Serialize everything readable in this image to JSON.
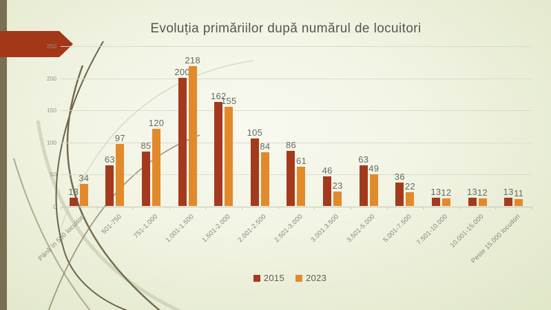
{
  "slide": {
    "title": "Evoluția primăriilor după numărul de locuitori"
  },
  "chart_data": {
    "type": "bar",
    "title": "Evoluția primăriilor după numărul de locuitori",
    "categories": [
      "Până în 500 locuitori",
      "501-750",
      "751-1.000",
      "1.001-1.500",
      "1.501-2.000",
      "2.001-2.500",
      "2.501-3.000",
      "3.001.3.500",
      "3.501-5.000",
      "5.001-7.500",
      "7.501-10.000",
      "10.001-15.000",
      "Peste 15.000 locuitori"
    ],
    "series": [
      {
        "name": "2015",
        "color": "#a43a1d",
        "values": [
          13,
          63,
          85,
          200,
          162,
          105,
          86,
          46,
          63,
          36,
          13,
          13,
          13
        ]
      },
      {
        "name": "2023",
        "color": "#e28a2b",
        "values": [
          34,
          97,
          120,
          218,
          155,
          84,
          61,
          23,
          49,
          22,
          12,
          12,
          11
        ]
      }
    ],
    "ylim": [
      0,
      250
    ],
    "y_ticks": [
      0,
      50,
      100,
      150,
      200,
      250
    ],
    "grid": true,
    "data_labels": true,
    "legend_position": "bottom"
  },
  "colors": {
    "accent_red": "#a43718",
    "accent_orange": "#e28a2b",
    "stripe_olive": "#787052",
    "background": "#e7ecd3",
    "title_text": "#555551"
  }
}
